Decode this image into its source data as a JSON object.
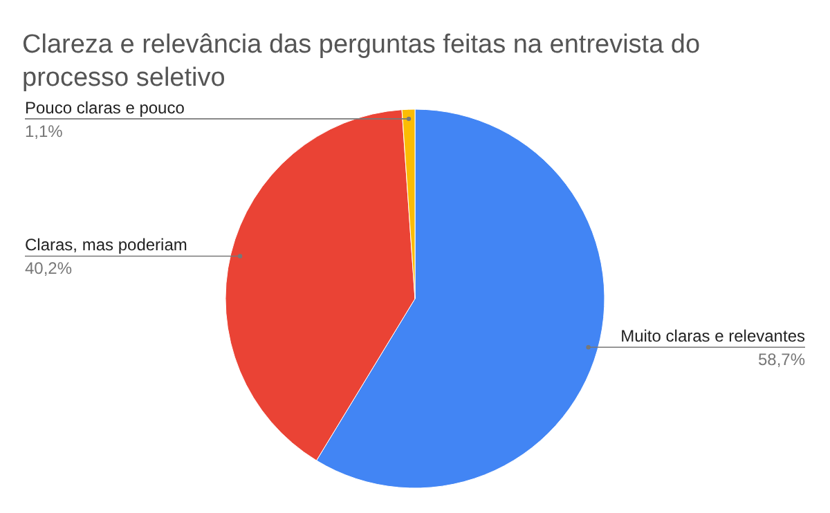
{
  "chart_data": {
    "type": "pie",
    "title": "Clareza e relevância das perguntas feitas na entrevista do processo seletivo",
    "categories": [
      "Muito claras e relevantes",
      "Claras, mas poderiam",
      "Pouco claras e pouco"
    ],
    "values": [
      58.7,
      40.2,
      1.1
    ],
    "value_labels": [
      "58,7%",
      "40,2%",
      "1,1%"
    ],
    "colors": [
      "#4285f4",
      "#ea4335",
      "#fbbc04"
    ]
  }
}
